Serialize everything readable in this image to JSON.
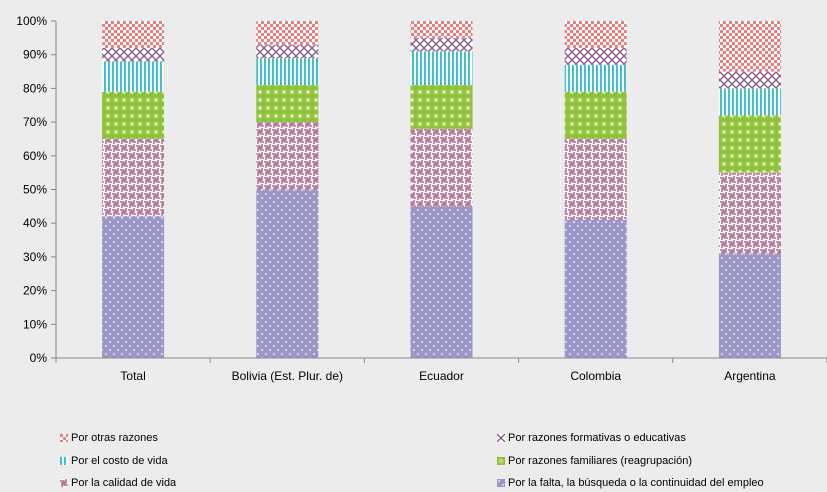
{
  "chart_data": {
    "type": "bar",
    "stacked": true,
    "percent": true,
    "categories": [
      "Total",
      "Bolivia (Est. Plur. de)",
      "Ecuador",
      "Colombia",
      "Argentina"
    ],
    "ylim": [
      0,
      100
    ],
    "yticks": [
      "0%",
      "10%",
      "20%",
      "30%",
      "40%",
      "50%",
      "60%",
      "70%",
      "80%",
      "90%",
      "100%"
    ],
    "grid": false,
    "legend_position": "bottom",
    "series": [
      {
        "name": "Por la falta, la búsqueda o la continuidad del empleo",
        "color": "#9a96c8",
        "pattern": "dots-white",
        "values": [
          42,
          50,
          45,
          41,
          31
        ]
      },
      {
        "name": "Por la calidad de vida",
        "color": "#b36a8e",
        "pattern": "weave",
        "values": [
          23,
          20,
          23,
          24,
          24
        ]
      },
      {
        "name": "Por razones familiares (reagrupación)",
        "color": "#8fc23c",
        "pattern": "circles",
        "values": [
          14,
          11,
          13,
          14,
          17
        ]
      },
      {
        "name": "Por el costo de vida",
        "color": "#3fc0cf",
        "pattern": "vlines",
        "values": [
          9,
          8,
          10,
          8,
          8
        ]
      },
      {
        "name": "Por razones formativas o educativas",
        "color": "#8a5a8f",
        "pattern": "crosshatch",
        "values": [
          4,
          4,
          4,
          5,
          5
        ]
      },
      {
        "name": "Por otras razones",
        "color": "#ef7b7b",
        "pattern": "checker",
        "values": [
          8,
          7,
          5,
          8,
          15
        ]
      }
    ]
  },
  "legend": {
    "items": [
      {
        "label": "Por otras razones",
        "series": 5
      },
      {
        "label": "Por razones formativas o educativas",
        "series": 4
      },
      {
        "label": "Por el costo de vida",
        "series": 3
      },
      {
        "label": "Por razones familiares (reagrupación)",
        "series": 2
      },
      {
        "label": "Por la calidad de vida",
        "series": 1
      },
      {
        "label": "Por la falta, la búsqueda o la continuidad del empleo",
        "series": 0
      }
    ]
  }
}
